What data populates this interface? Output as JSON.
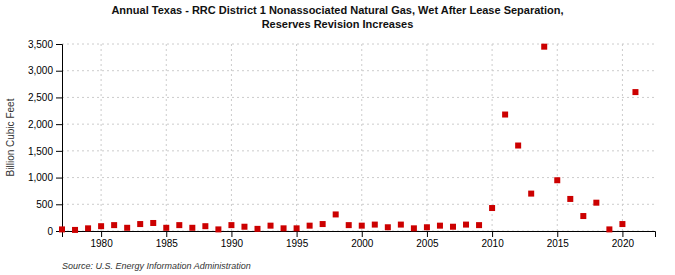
{
  "chart_data": {
    "type": "scatter",
    "title": "Annual Texas - RRC District 1 Nonassociated Natural Gas, Wet After Lease Separation,\nReserves Revision Increases",
    "ylabel": "Billion Cubic Feet",
    "source": "Source: U.S. Energy Information Administration",
    "color": "#cc0000",
    "marker": "square",
    "grid": true,
    "x": [
      1977,
      1978,
      1979,
      1980,
      1981,
      1982,
      1983,
      1984,
      1985,
      1986,
      1987,
      1988,
      1989,
      1990,
      1991,
      1992,
      1993,
      1994,
      1995,
      1996,
      1997,
      1998,
      1999,
      2000,
      2001,
      2002,
      2003,
      2004,
      2005,
      2006,
      2007,
      2008,
      2009,
      2010,
      2011,
      2012,
      2013,
      2014,
      2015,
      2016,
      2017,
      2018,
      2019,
      2020,
      2021
    ],
    "values": [
      30,
      20,
      50,
      90,
      110,
      60,
      130,
      150,
      60,
      110,
      60,
      90,
      30,
      110,
      80,
      40,
      100,
      50,
      50,
      100,
      130,
      310,
      110,
      100,
      120,
      70,
      120,
      50,
      70,
      100,
      80,
      120,
      110,
      430,
      2180,
      1600,
      700,
      3450,
      950,
      600,
      280,
      530,
      30,
      130,
      2600
    ],
    "xlim": [
      1977,
      2022.5
    ],
    "xticks": [
      1980,
      1985,
      1990,
      1995,
      2000,
      2005,
      2010,
      2015,
      2020
    ],
    "ylim": [
      0,
      3500
    ],
    "yticks": [
      0,
      500,
      {
        "value": 1000,
        "label": "1,000"
      },
      {
        "value": 1500,
        "label": "1,500"
      },
      {
        "value": 2000,
        "label": "2,000"
      },
      {
        "value": 2500,
        "label": "2,500"
      },
      {
        "value": 3000,
        "label": "3,000"
      },
      {
        "value": 3500,
        "label": "3,500"
      }
    ]
  }
}
